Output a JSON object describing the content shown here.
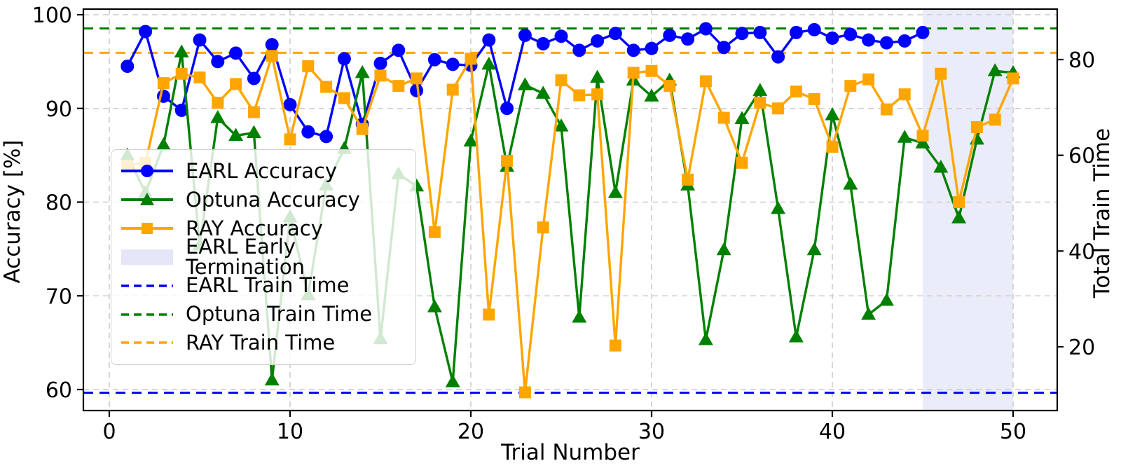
{
  "chart_data": {
    "type": "line",
    "title": "",
    "xlabel": "Trial Number",
    "ylabel_left": "Accuracy [%]",
    "ylabel_right": "Total Train Time",
    "x_ticks": [
      0,
      10,
      20,
      30,
      40,
      50
    ],
    "y_ticks_left": [
      60,
      70,
      80,
      90,
      100
    ],
    "y_ticks_right": [
      20,
      40,
      60,
      80
    ],
    "xlim": [
      -1.4,
      52.4
    ],
    "ylim_left": [
      57.8,
      100.6
    ],
    "ylim_right": [
      6.7,
      90.5
    ],
    "grid": true,
    "legend_position": "center-left",
    "series": [
      {
        "name": "EARL Accuracy",
        "color": "#0000ff",
        "marker": "circle",
        "x_start": 1,
        "values": [
          94.5,
          98.2,
          91.3,
          89.8,
          97.3,
          95.0,
          95.9,
          93.2,
          96.8,
          90.4,
          87.5,
          87.0,
          95.3,
          88.3,
          94.8,
          96.2,
          91.9,
          95.2,
          94.7,
          94.6,
          97.3,
          90.0,
          97.8,
          96.9,
          97.7,
          96.2,
          97.2,
          98.0,
          96.2,
          96.4,
          97.8,
          97.4,
          98.5,
          96.5,
          98.0,
          98.1,
          95.5,
          98.1,
          98.4,
          97.5,
          97.9,
          97.3,
          97.0,
          97.2,
          98.1
        ]
      },
      {
        "name": "Optuna Accuracy",
        "color": "#008000",
        "marker": "triangle",
        "x_start": 1,
        "values": [
          85.0,
          81.0,
          86.1,
          96.0,
          75.4,
          89.0,
          87.1,
          87.4,
          61.0,
          78.4,
          70.1,
          81.8,
          85.7,
          93.8,
          65.4,
          83.0,
          81.7,
          68.8,
          60.8,
          86.5,
          94.7,
          83.8,
          92.5,
          91.6,
          88.1,
          67.7,
          93.3,
          81.0,
          93.0,
          91.3,
          93.0,
          81.8,
          65.3,
          74.9,
          88.9,
          91.9,
          79.3,
          65.6,
          74.9,
          89.3,
          81.9,
          68.0,
          69.5,
          86.9,
          86.3,
          83.7,
          78.3,
          86.7,
          94.0,
          93.8
        ]
      },
      {
        "name": "RAY Accuracy",
        "color": "#ffa500",
        "marker": "square",
        "x_start": 1,
        "values": [
          83.9,
          84.2,
          92.7,
          93.7,
          93.3,
          90.6,
          92.6,
          89.6,
          95.6,
          86.7,
          94.5,
          92.3,
          91.1,
          87.8,
          93.5,
          92.4,
          93.2,
          76.8,
          92.0,
          95.3,
          68.0,
          84.4,
          59.7,
          77.3,
          93.0,
          91.4,
          91.5,
          64.7,
          93.8,
          94.0,
          92.4,
          82.4,
          92.9,
          89.0,
          84.2,
          90.6,
          90.0,
          91.8,
          91.0,
          85.9,
          92.4,
          93.1,
          89.9,
          91.5,
          87.1,
          93.7,
          80.0,
          88.0,
          88.8,
          93.2
        ]
      }
    ],
    "hlines": [
      {
        "name": "EARL Train Time",
        "axis": "right",
        "value": 10.4,
        "color": "#0000ff"
      },
      {
        "name": "Optuna Train Time",
        "axis": "right",
        "value": 86.5,
        "color": "#008000"
      },
      {
        "name": "RAY Train Time",
        "axis": "right",
        "value": 81.4,
        "color": "#ffa500"
      }
    ],
    "span": {
      "name": "EARL Early Termination",
      "x0": 45,
      "x1": 50,
      "color": "#e4e6f7"
    },
    "legend": [
      {
        "label": "EARL Accuracy",
        "kind": "line-marker",
        "color": "#0000ff",
        "marker": "circle"
      },
      {
        "label": "Optuna Accuracy",
        "kind": "line-marker",
        "color": "#008000",
        "marker": "triangle"
      },
      {
        "label": "RAY Accuracy",
        "kind": "line-marker",
        "color": "#ffa500",
        "marker": "square"
      },
      {
        "label": "EARL Early Termination",
        "kind": "patch",
        "color": "#e4e6f7"
      },
      {
        "label": "EARL Train Time",
        "kind": "dashed",
        "color": "#0000ff"
      },
      {
        "label": "Optuna Train Time",
        "kind": "dashed",
        "color": "#008000"
      },
      {
        "label": "RAY Train Time",
        "kind": "dashed",
        "color": "#ffa500"
      }
    ],
    "colors": {
      "grid": "#cccccc",
      "spine": "#000000",
      "band": "#e4e6f7"
    }
  }
}
